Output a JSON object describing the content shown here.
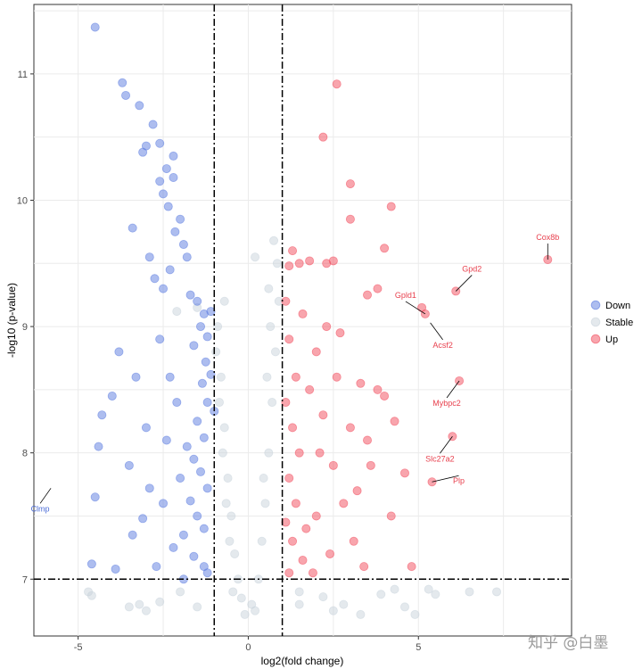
{
  "chart_data": {
    "type": "scatter",
    "title": "",
    "xlabel": "log2(fold change)",
    "ylabel": "-log10 (p-value)",
    "xlim": [
      -6.3,
      9.5
    ],
    "ylim": [
      6.55,
      11.55
    ],
    "x_ticks": [
      -5,
      0,
      5
    ],
    "y_ticks": [
      7,
      8,
      9,
      10,
      11
    ],
    "grid": true,
    "legend_position": "right",
    "thresholds": {
      "x": [
        -1,
        1
      ],
      "y": 7
    },
    "colors": {
      "Down": "#5B7BE0",
      "Stable": "#C9D3DC",
      "Up": "#F24B5C"
    },
    "series": [
      {
        "name": "Down",
        "points": [
          [
            -4.5,
            11.37
          ],
          [
            -3.7,
            10.93
          ],
          [
            -3.6,
            10.83
          ],
          [
            -3.2,
            10.75
          ],
          [
            -2.8,
            10.6
          ],
          [
            -2.6,
            10.45
          ],
          [
            -3.0,
            10.43
          ],
          [
            -3.1,
            10.38
          ],
          [
            -2.4,
            10.25
          ],
          [
            -2.2,
            10.18
          ],
          [
            -2.6,
            10.15
          ],
          [
            -2.5,
            10.05
          ],
          [
            -2.35,
            9.95
          ],
          [
            -2.0,
            9.85
          ],
          [
            -2.15,
            9.75
          ],
          [
            -1.9,
            9.65
          ],
          [
            -1.8,
            9.55
          ],
          [
            -2.3,
            9.45
          ],
          [
            -2.75,
            9.38
          ],
          [
            -2.5,
            9.3
          ],
          [
            -1.7,
            9.25
          ],
          [
            -1.5,
            9.2
          ],
          [
            -1.3,
            9.1
          ],
          [
            -1.4,
            9.0
          ],
          [
            -1.2,
            8.92
          ],
          [
            -1.6,
            8.85
          ],
          [
            -1.25,
            8.72
          ],
          [
            -1.1,
            8.62
          ],
          [
            -1.35,
            8.55
          ],
          [
            -1.2,
            8.4
          ],
          [
            -1.5,
            8.25
          ],
          [
            -1.3,
            8.12
          ],
          [
            -1.8,
            8.05
          ],
          [
            -1.6,
            7.95
          ],
          [
            -1.4,
            7.85
          ],
          [
            -1.2,
            7.72
          ],
          [
            -1.7,
            7.62
          ],
          [
            -1.5,
            7.5
          ],
          [
            -1.3,
            7.4
          ],
          [
            -1.9,
            7.35
          ],
          [
            -2.2,
            7.25
          ],
          [
            -1.6,
            7.18
          ],
          [
            -1.3,
            7.1
          ],
          [
            -1.2,
            7.05
          ],
          [
            -3.8,
            8.8
          ],
          [
            -3.3,
            8.6
          ],
          [
            -4.0,
            8.45
          ],
          [
            -4.3,
            8.3
          ],
          [
            -3.0,
            8.2
          ],
          [
            -4.4,
            8.05
          ],
          [
            -3.5,
            7.9
          ],
          [
            -2.9,
            7.72
          ],
          [
            -4.5,
            7.65
          ],
          [
            -3.1,
            7.48
          ],
          [
            -3.4,
            7.35
          ],
          [
            -2.7,
            7.1
          ],
          [
            -4.6,
            7.12
          ],
          [
            -3.9,
            7.08
          ],
          [
            -2.3,
            8.6
          ],
          [
            -2.6,
            8.9
          ],
          [
            -2.1,
            8.4
          ],
          [
            -2.4,
            8.1
          ],
          [
            -2.0,
            7.8
          ],
          [
            -2.5,
            7.6
          ],
          [
            -1.9,
            7.0
          ],
          [
            -1.1,
            9.12
          ],
          [
            -2.9,
            9.55
          ],
          [
            -3.4,
            9.78
          ],
          [
            -2.2,
            10.35
          ],
          [
            -1.0,
            8.33
          ]
        ]
      },
      {
        "name": "Stable",
        "points": [
          [
            -0.9,
            9.0
          ],
          [
            -0.8,
            8.6
          ],
          [
            -0.7,
            8.2
          ],
          [
            -0.6,
            7.8
          ],
          [
            -0.5,
            7.5
          ],
          [
            -0.4,
            7.2
          ],
          [
            -0.3,
            7.0
          ],
          [
            -0.2,
            6.85
          ],
          [
            0.1,
            6.8
          ],
          [
            0.3,
            7.0
          ],
          [
            0.4,
            7.3
          ],
          [
            0.5,
            7.6
          ],
          [
            0.6,
            8.0
          ],
          [
            0.7,
            8.4
          ],
          [
            0.8,
            8.8
          ],
          [
            0.9,
            9.2
          ],
          [
            0.85,
            9.5
          ],
          [
            0.75,
            9.68
          ],
          [
            0.6,
            9.3
          ],
          [
            -0.95,
            8.8
          ],
          [
            -0.85,
            8.4
          ],
          [
            -0.75,
            8.0
          ],
          [
            -0.65,
            7.6
          ],
          [
            -0.55,
            7.3
          ],
          [
            0.45,
            7.8
          ],
          [
            0.55,
            8.6
          ],
          [
            0.65,
            9.0
          ],
          [
            -0.45,
            6.9
          ],
          [
            0.2,
            6.75
          ],
          [
            -0.1,
            6.72
          ],
          [
            -4.7,
            6.9
          ],
          [
            -4.6,
            6.87
          ],
          [
            -3.5,
            6.78
          ],
          [
            -3.2,
            6.8
          ],
          [
            -2.6,
            6.82
          ],
          [
            -2.0,
            6.9
          ],
          [
            -1.5,
            6.78
          ],
          [
            1.5,
            6.9
          ],
          [
            2.2,
            6.86
          ],
          [
            2.8,
            6.8
          ],
          [
            3.3,
            6.72
          ],
          [
            3.9,
            6.88
          ],
          [
            4.3,
            6.92
          ],
          [
            4.6,
            6.78
          ],
          [
            5.3,
            6.92
          ],
          [
            5.5,
            6.88
          ],
          [
            6.5,
            6.9
          ],
          [
            7.3,
            6.9
          ],
          [
            4.9,
            6.72
          ],
          [
            -2.1,
            9.12
          ],
          [
            -1.5,
            9.15
          ],
          [
            -0.7,
            9.2
          ],
          [
            0.2,
            9.55
          ],
          [
            1.5,
            6.8
          ],
          [
            2.5,
            6.75
          ],
          [
            -3.0,
            6.75
          ]
        ]
      },
      {
        "name": "Up",
        "points": [
          [
            2.6,
            10.92
          ],
          [
            2.2,
            10.5
          ],
          [
            3.0,
            10.13
          ],
          [
            3.0,
            9.85
          ],
          [
            4.2,
            9.95
          ],
          [
            4.0,
            9.62
          ],
          [
            1.3,
            9.6
          ],
          [
            1.2,
            9.48
          ],
          [
            1.5,
            9.5
          ],
          [
            1.8,
            9.52
          ],
          [
            2.3,
            9.5
          ],
          [
            2.5,
            9.52
          ],
          [
            3.5,
            9.25
          ],
          [
            3.8,
            9.3
          ],
          [
            5.1,
            9.15
          ],
          [
            5.2,
            9.1
          ],
          [
            6.1,
            9.28
          ],
          [
            8.8,
            9.53
          ],
          [
            6.2,
            8.57
          ],
          [
            6.0,
            8.13
          ],
          [
            5.4,
            7.77
          ],
          [
            4.6,
            7.84
          ],
          [
            4.2,
            7.5
          ],
          [
            4.0,
            8.45
          ],
          [
            4.3,
            8.25
          ],
          [
            4.8,
            7.1
          ],
          [
            1.1,
            9.2
          ],
          [
            1.2,
            8.9
          ],
          [
            1.4,
            8.6
          ],
          [
            1.1,
            8.4
          ],
          [
            1.3,
            8.2
          ],
          [
            1.5,
            8.0
          ],
          [
            1.2,
            7.8
          ],
          [
            1.4,
            7.6
          ],
          [
            1.1,
            7.45
          ],
          [
            1.3,
            7.3
          ],
          [
            1.6,
            7.15
          ],
          [
            1.2,
            7.05
          ],
          [
            2.0,
            8.8
          ],
          [
            2.2,
            8.3
          ],
          [
            2.5,
            7.9
          ],
          [
            2.8,
            7.6
          ],
          [
            3.1,
            7.3
          ],
          [
            3.4,
            7.1
          ],
          [
            2.6,
            8.6
          ],
          [
            3.0,
            8.2
          ],
          [
            2.0,
            7.5
          ],
          [
            1.8,
            8.5
          ],
          [
            2.3,
            9.0
          ],
          [
            2.7,
            8.95
          ],
          [
            3.3,
            8.55
          ],
          [
            3.6,
            7.9
          ],
          [
            1.7,
            7.4
          ],
          [
            2.4,
            7.2
          ],
          [
            1.9,
            7.05
          ],
          [
            3.5,
            8.1
          ],
          [
            1.6,
            9.1
          ],
          [
            2.1,
            8.0
          ],
          [
            3.8,
            8.5
          ],
          [
            3.2,
            7.7
          ]
        ]
      }
    ],
    "legend": [
      "Down",
      "Stable",
      "Up"
    ],
    "annotations": [
      {
        "label": "Cox8b",
        "x": 8.8,
        "y": 9.53,
        "series": "Up"
      },
      {
        "label": "Gpd2",
        "x": 6.1,
        "y": 9.28,
        "series": "Up"
      },
      {
        "label": "Gpld1",
        "x": 5.2,
        "y": 9.1,
        "series": "Up"
      },
      {
        "label": "Acsf2",
        "x": 5.35,
        "y": 9.03,
        "series": "Up"
      },
      {
        "label": "Mybpc2",
        "x": 6.2,
        "y": 8.57,
        "series": "Up"
      },
      {
        "label": "Slc27a2",
        "x": 6.0,
        "y": 8.13,
        "series": "Up"
      },
      {
        "label": "Plp",
        "x": 5.4,
        "y": 7.77,
        "series": "Up"
      },
      {
        "label": "Clmp",
        "x": -5.8,
        "y": 7.72,
        "series": "Down"
      }
    ]
  },
  "watermark": "知乎 @白墨"
}
